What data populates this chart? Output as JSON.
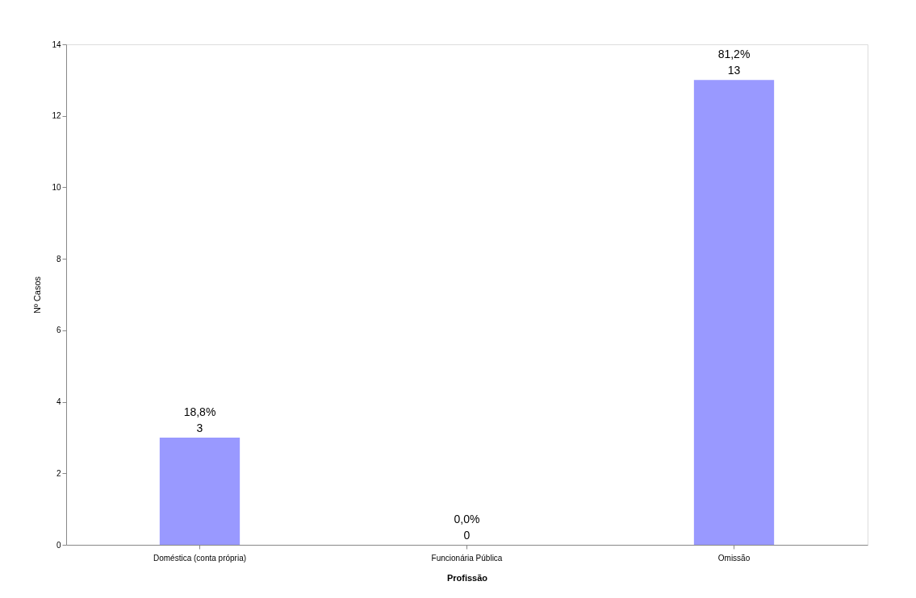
{
  "chart_data": {
    "type": "bar",
    "xlabel": "Profissão",
    "ylabel": "Nº Casos",
    "categories": [
      "Doméstica (conta própria)",
      "Funcionária Pública",
      "Omissão"
    ],
    "values": [
      3,
      0,
      13
    ],
    "color": "#9999ff",
    "data_labels": true,
    "annotations": [
      {
        "text": "18,8%",
        "x": "Doméstica (conta própria)",
        "y": 3
      },
      {
        "text": "0,0%",
        "x": "Funcionária Pública",
        "y": 0
      },
      {
        "text": "81,2%",
        "x": "Omissão",
        "y": 13
      }
    ],
    "ylim": [
      0,
      14
    ],
    "yticks": [
      0,
      2,
      4,
      6,
      8,
      10,
      12,
      14
    ],
    "grid": false
  }
}
